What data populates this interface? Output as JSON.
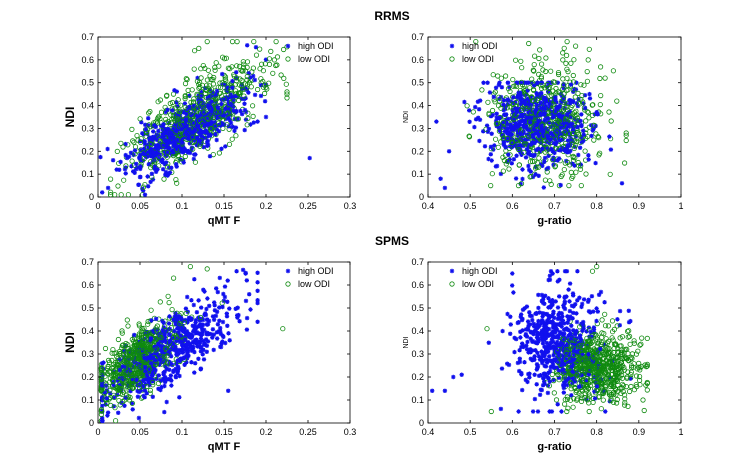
{
  "row_titles": [
    "RRMS",
    "SPMS"
  ],
  "colors": {
    "high": "#1010ee",
    "low": "#0f8a0f",
    "axis": "#000000"
  },
  "chart_data": [
    {
      "type": "scatter",
      "row_title": "RRMS",
      "xlabel": "qMT F",
      "ylabel": "NDI",
      "ylabel_style": "bold",
      "xlim": [
        0,
        0.3
      ],
      "ylim": [
        0,
        0.7
      ],
      "xticks": [
        0,
        0.05,
        0.1,
        0.15,
        0.2,
        0.25,
        0.3
      ],
      "xtick_labels": [
        "0",
        "0.05",
        "0.1",
        "0.15",
        "0.2",
        "0.25",
        "0.3"
      ],
      "yticks": [
        0,
        0.1,
        0.2,
        0.3,
        0.4,
        0.5,
        0.6,
        0.7
      ],
      "ytick_labels": [
        "0",
        "0.1",
        "0.2",
        "0.3",
        "0.4",
        "0.5",
        "0.6",
        "0.7"
      ],
      "legend": {
        "position": "top-right",
        "entries": [
          "high ODI",
          "low ODI"
        ]
      },
      "series": [
        {
          "name": "high ODI",
          "marker": "asterisk",
          "n": 620,
          "seed": 11,
          "shape": "correlated",
          "x_mean": 0.105,
          "x_sd": 0.035,
          "x_min": 0.003,
          "x_max": 0.2,
          "intercept": 0.075,
          "slope": 2.05,
          "noise": 0.065,
          "extra": [
            [
              0.252,
              0.17
            ],
            [
              0.005,
              0.02
            ],
            [
              0.012,
              0.04
            ],
            [
              0.19,
              0.33
            ],
            [
              0.2,
              0.35
            ]
          ]
        },
        {
          "name": "low ODI",
          "marker": "circle",
          "n": 560,
          "seed": 23,
          "shape": "correlated",
          "x_mean": 0.115,
          "x_sd": 0.04,
          "x_min": 0.015,
          "x_max": 0.225,
          "intercept": 0.08,
          "slope": 2.3,
          "noise": 0.085,
          "extra": [
            [
              0.225,
              0.45
            ],
            [
              0.13,
              0.68
            ],
            [
              0.12,
              0.65
            ],
            [
              0.115,
              0.64
            ],
            [
              0.2,
              0.48
            ]
          ]
        }
      ]
    },
    {
      "type": "scatter",
      "row_title": "RRMS",
      "xlabel": "g-ratio",
      "ylabel": "NDI",
      "ylabel_style": "small",
      "xlim": [
        0.4,
        1
      ],
      "ylim": [
        0,
        0.7
      ],
      "xticks": [
        0.4,
        0.5,
        0.6,
        0.7,
        0.8,
        0.9,
        1
      ],
      "xtick_labels": [
        "0.4",
        "0.5",
        "0.6",
        "0.7",
        "0.8",
        "0.9",
        "1"
      ],
      "yticks": [
        0,
        0.1,
        0.2,
        0.3,
        0.4,
        0.5,
        0.6,
        0.7
      ],
      "ytick_labels": [
        "0",
        "0.1",
        "0.2",
        "0.3",
        "0.4",
        "0.5",
        "0.6",
        "0.7"
      ],
      "legend": {
        "position": "top-left",
        "entries": [
          "high ODI",
          "low ODI"
        ]
      },
      "series": [
        {
          "name": "high ODI",
          "marker": "asterisk",
          "n": 620,
          "seed": 37,
          "shape": "blob",
          "x_mean": 0.66,
          "x_sd": 0.06,
          "x_min": 0.42,
          "x_max": 0.87,
          "y_mean": 0.32,
          "y_sd": 0.095,
          "y_min": 0.04,
          "y_max": 0.5,
          "extra": [
            [
              0.42,
              0.33
            ],
            [
              0.43,
              0.08
            ],
            [
              0.44,
              0.04
            ],
            [
              0.86,
              0.06
            ],
            [
              0.45,
              0.2
            ]
          ]
        },
        {
          "name": "low ODI",
          "marker": "circle",
          "n": 560,
          "seed": 41,
          "shape": "blob",
          "x_mean": 0.68,
          "x_sd": 0.065,
          "x_min": 0.47,
          "x_max": 0.87,
          "y_mean": 0.34,
          "y_sd": 0.13,
          "y_min": 0.05,
          "y_max": 0.68,
          "extra": [
            [
              0.73,
              0.68
            ],
            [
              0.75,
              0.66
            ],
            [
              0.87,
              0.27
            ],
            [
              0.82,
              0.52
            ],
            [
              0.78,
              0.6
            ]
          ]
        }
      ]
    },
    {
      "type": "scatter",
      "row_title": "SPMS",
      "xlabel": "qMT F",
      "ylabel": "NDI",
      "ylabel_style": "bold",
      "xlim": [
        0,
        0.3
      ],
      "ylim": [
        0,
        0.7
      ],
      "xticks": [
        0,
        0.05,
        0.1,
        0.15,
        0.2,
        0.25,
        0.3
      ],
      "xtick_labels": [
        "0",
        "0.05",
        "0.1",
        "0.15",
        "0.2",
        "0.25",
        "0.3"
      ],
      "yticks": [
        0,
        0.1,
        0.2,
        0.3,
        0.4,
        0.5,
        0.6,
        0.7
      ],
      "ytick_labels": [
        "0",
        "0.1",
        "0.2",
        "0.3",
        "0.4",
        "0.5",
        "0.6",
        "0.7"
      ],
      "legend": {
        "position": "top-right",
        "entries": [
          "high ODI",
          "low ODI"
        ]
      },
      "series": [
        {
          "name": "high ODI",
          "marker": "asterisk",
          "n": 600,
          "seed": 53,
          "shape": "correlated",
          "x_mean": 0.085,
          "x_sd": 0.04,
          "x_min": 0.005,
          "x_max": 0.19,
          "intercept": 0.13,
          "slope": 2.2,
          "noise": 0.075,
          "extra": [
            [
              0.19,
              0.44
            ],
            [
              0.18,
              0.56
            ],
            [
              0.005,
              0.0
            ],
            [
              0.155,
              0.14
            ],
            [
              0.165,
              0.66
            ]
          ]
        },
        {
          "name": "low ODI",
          "marker": "circle",
          "n": 620,
          "seed": 67,
          "shape": "correlated",
          "x_mean": 0.045,
          "x_sd": 0.025,
          "x_min": 0.004,
          "x_max": 0.17,
          "intercept": 0.15,
          "slope": 2.6,
          "noise": 0.065,
          "extra": [
            [
              0.22,
              0.41
            ],
            [
              0.11,
              0.68
            ],
            [
              0.13,
              0.67
            ],
            [
              0.09,
              0.63
            ],
            [
              0.01,
              0.1
            ]
          ]
        }
      ]
    },
    {
      "type": "scatter",
      "row_title": "SPMS",
      "xlabel": "g-ratio",
      "ylabel": "NDI",
      "ylabel_style": "small",
      "xlim": [
        0.4,
        1
      ],
      "ylim": [
        0,
        0.7
      ],
      "xticks": [
        0.4,
        0.5,
        0.6,
        0.7,
        0.8,
        0.9,
        1
      ],
      "xtick_labels": [
        "0.4",
        "0.5",
        "0.6",
        "0.7",
        "0.8",
        "0.9",
        "1"
      ],
      "yticks": [
        0,
        0.1,
        0.2,
        0.3,
        0.4,
        0.5,
        0.6,
        0.7
      ],
      "ytick_labels": [
        "0",
        "0.1",
        "0.2",
        "0.3",
        "0.4",
        "0.5",
        "0.6",
        "0.7"
      ],
      "legend": {
        "position": "top-left",
        "entries": [
          "high ODI",
          "low ODI"
        ]
      },
      "series": [
        {
          "name": "high ODI",
          "marker": "asterisk",
          "n": 580,
          "seed": 71,
          "shape": "blob",
          "x_mean": 0.71,
          "x_sd": 0.055,
          "x_min": 0.43,
          "x_max": 0.88,
          "y_mean": 0.35,
          "y_sd": 0.12,
          "y_min": 0.05,
          "y_max": 0.66,
          "extra": [
            [
              0.41,
              0.14
            ],
            [
              0.44,
              0.14
            ],
            [
              0.46,
              0.2
            ],
            [
              0.48,
              0.21
            ],
            [
              0.6,
              0.65
            ]
          ]
        },
        {
          "name": "low ODI",
          "marker": "circle",
          "n": 680,
          "seed": 83,
          "shape": "blob",
          "x_mean": 0.8,
          "x_sd": 0.05,
          "x_min": 0.55,
          "x_max": 0.92,
          "y_mean": 0.25,
          "y_sd": 0.08,
          "y_min": 0.05,
          "y_max": 0.68,
          "extra": [
            [
              0.55,
              0.05
            ],
            [
              0.54,
              0.41
            ],
            [
              0.8,
              0.68
            ],
            [
              0.79,
              0.66
            ],
            [
              0.91,
              0.1
            ]
          ]
        }
      ]
    }
  ]
}
